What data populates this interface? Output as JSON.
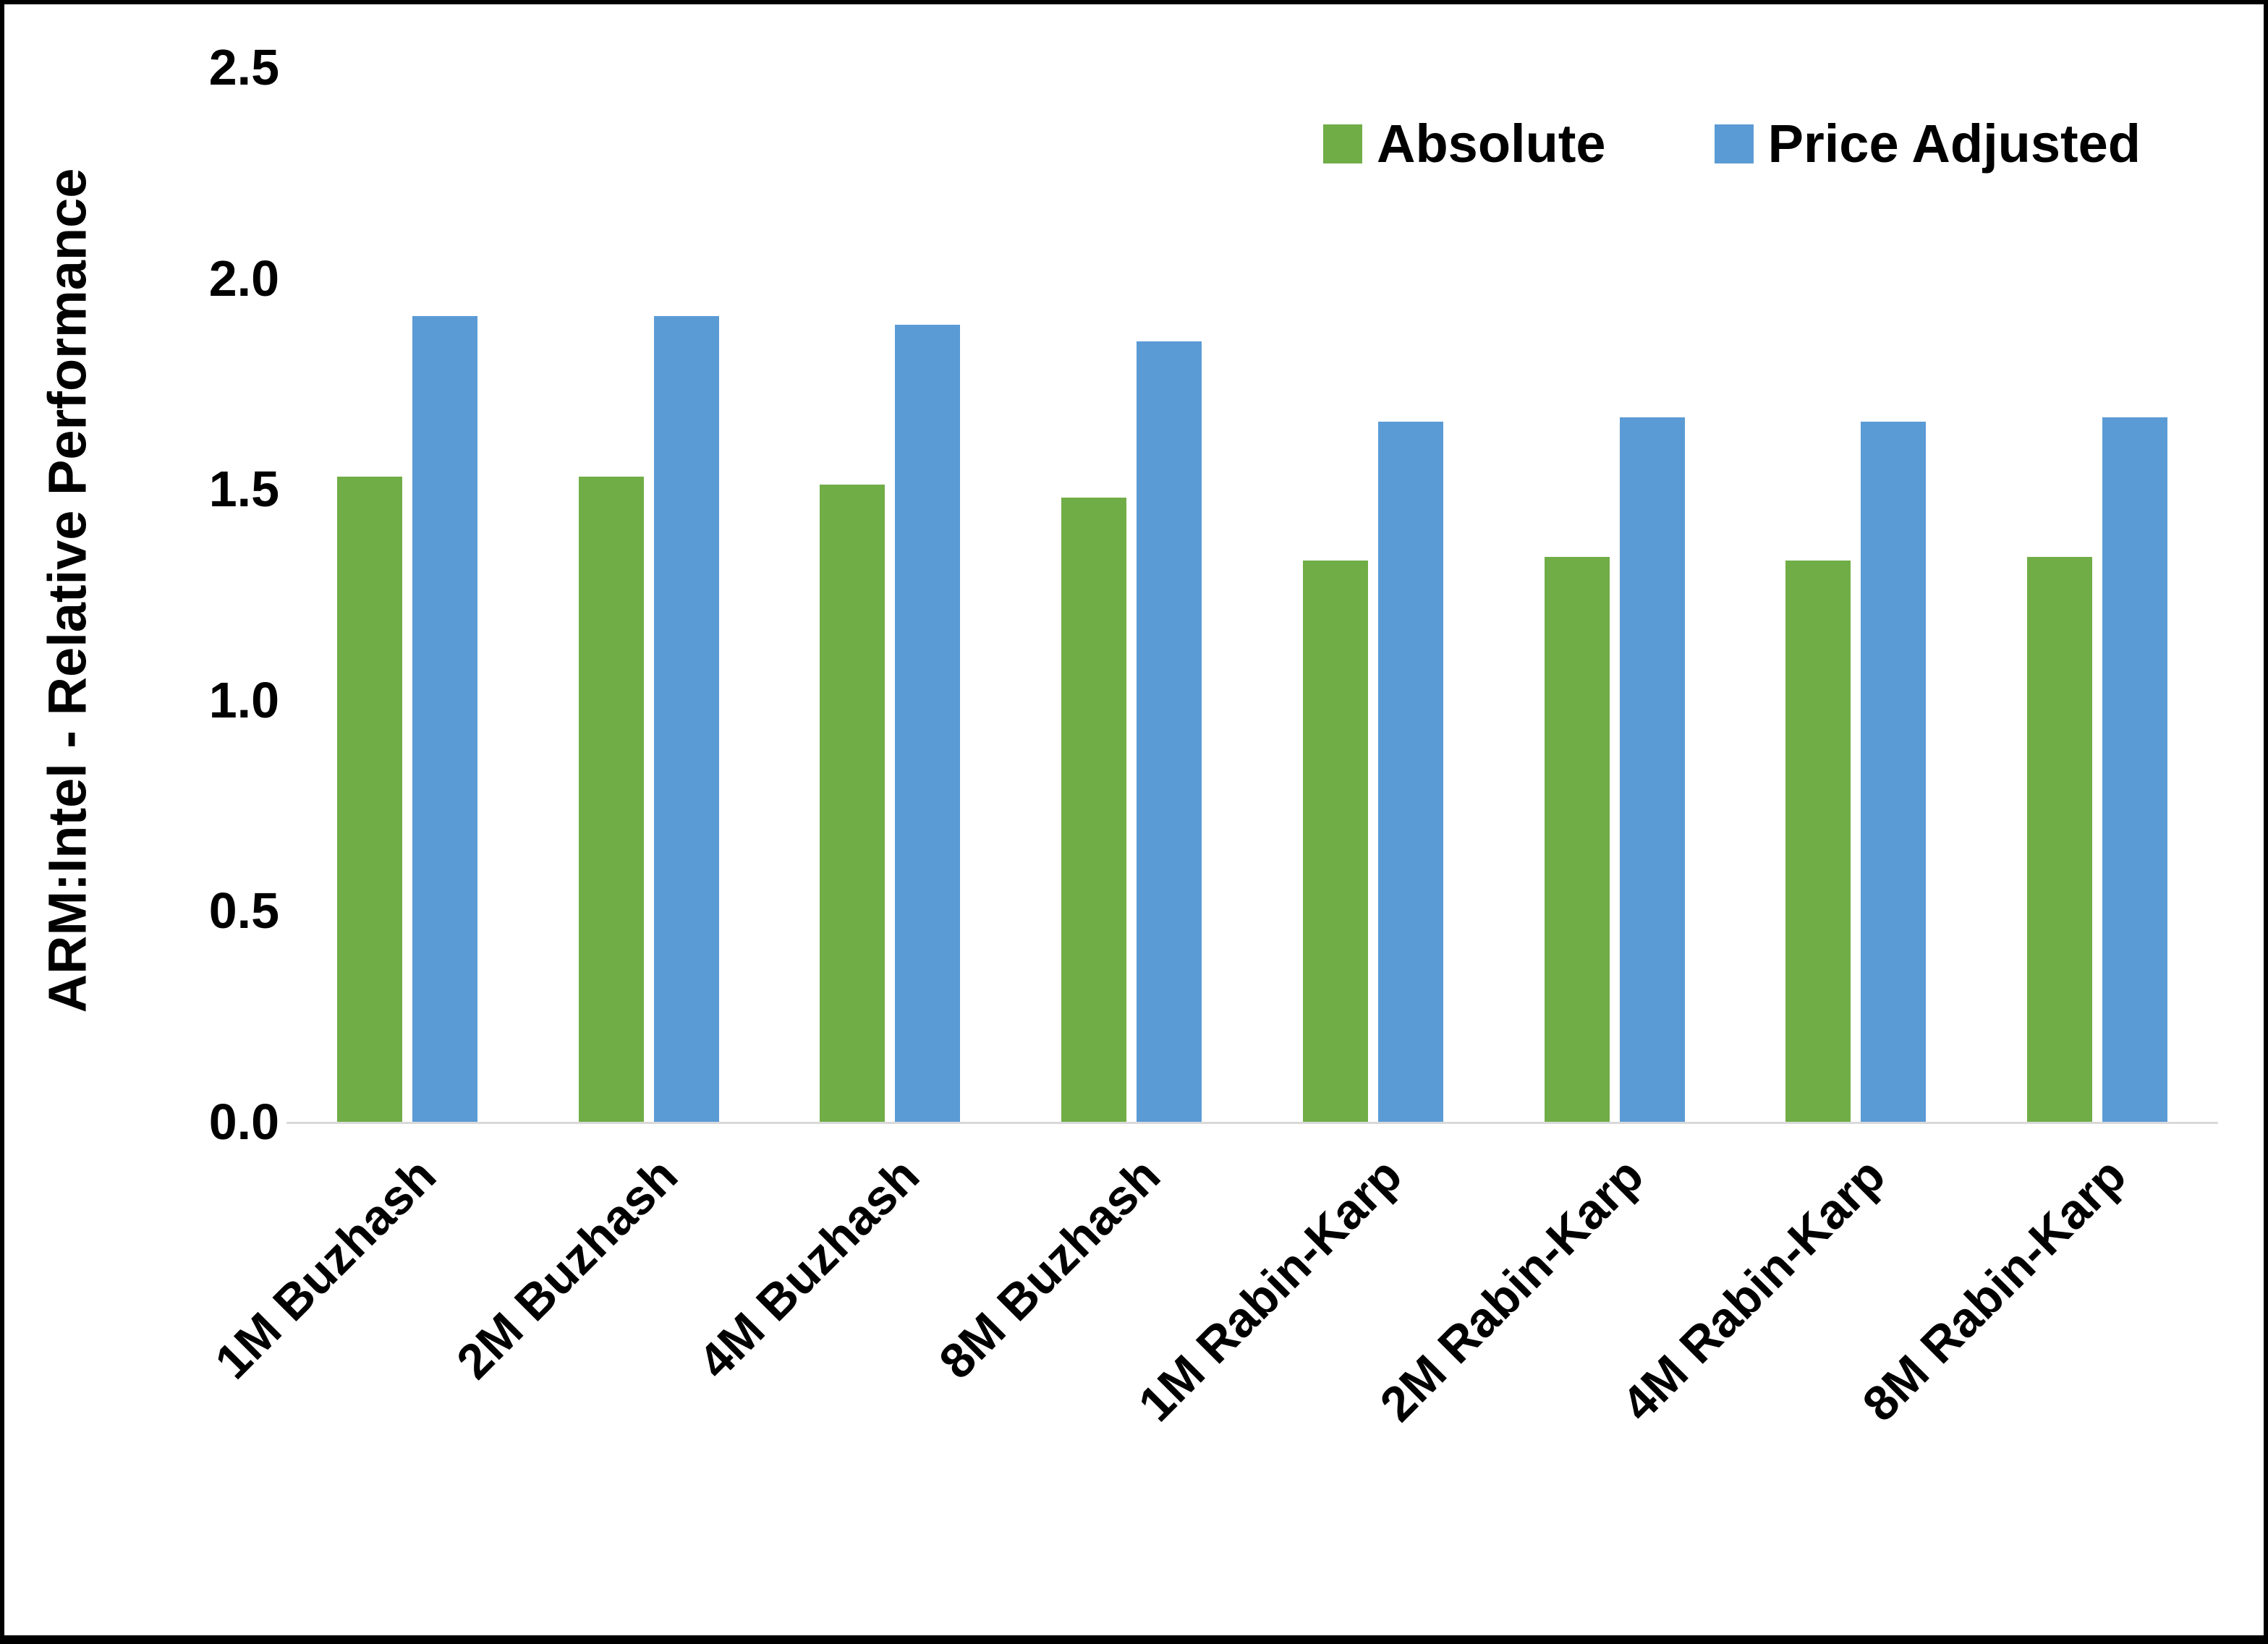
{
  "chart_data": {
    "type": "bar",
    "title": "",
    "xlabel": "",
    "ylabel": "ARM:Intel - Relative Performance",
    "ylim": [
      0,
      2.5
    ],
    "yticks": [
      0.0,
      0.5,
      1.0,
      1.5,
      2.0,
      2.5
    ],
    "grid": false,
    "legend_position": "top-right",
    "categories": [
      "1M Buzhash",
      "2M Buzhash",
      "4M Buzhash",
      "8M Buzhash",
      "1M Rabin-Karp",
      "2M Rabin-Karp",
      "4M Rabin-Karp",
      "8M Rabin-Karp"
    ],
    "series": [
      {
        "name": "Absolute",
        "color": "#70AD47",
        "values": [
          1.53,
          1.53,
          1.51,
          1.48,
          1.33,
          1.34,
          1.33,
          1.34
        ]
      },
      {
        "name": "Price Adjusted",
        "color": "#5B9BD5",
        "values": [
          1.91,
          1.91,
          1.89,
          1.85,
          1.66,
          1.67,
          1.66,
          1.67
        ]
      }
    ]
  }
}
